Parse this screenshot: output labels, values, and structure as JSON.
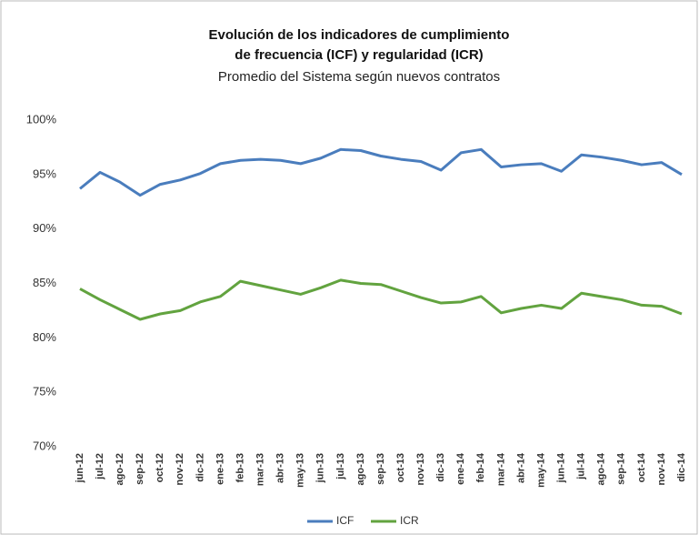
{
  "chart_data": {
    "type": "line",
    "title": [
      "Evolución de los indicadores de cumplimiento",
      "de frecuencia (ICF) y regularidad (ICR)"
    ],
    "subtitle": "Promedio del Sistema según nuevos contratos",
    "categories": [
      "jun-12",
      "jul-12",
      "ago-12",
      "sep-12",
      "oct-12",
      "nov-12",
      "dic-12",
      "ene-13",
      "feb-13",
      "mar-13",
      "abr-13",
      "may-13",
      "jun-13",
      "jul-13",
      "ago-13",
      "sep-13",
      "oct-13",
      "nov-13",
      "dic-13",
      "ene-14",
      "feb-14",
      "mar-14",
      "abr-14",
      "may-14",
      "jun-14",
      "jul-14",
      "ago-14",
      "sep-14",
      "oct-14",
      "nov-14",
      "dic-14"
    ],
    "series": [
      {
        "name": "ICF",
        "color": "#4a7dbd",
        "values": [
          93.7,
          95.2,
          94.3,
          93.1,
          94.1,
          94.5,
          95.1,
          96.0,
          96.3,
          96.4,
          96.3,
          96.0,
          96.5,
          97.3,
          97.2,
          96.7,
          96.4,
          96.2,
          95.4,
          97.0,
          97.3,
          95.7,
          95.9,
          96.0,
          95.3,
          96.8,
          96.6,
          96.3,
          95.9,
          96.1,
          95.0
        ]
      },
      {
        "name": "ICR",
        "color": "#62a33f",
        "values": [
          84.5,
          83.5,
          82.6,
          81.7,
          82.2,
          82.5,
          83.3,
          83.8,
          85.2,
          84.8,
          84.4,
          84.0,
          84.6,
          85.3,
          85.0,
          84.9,
          84.3,
          83.7,
          83.2,
          83.3,
          83.8,
          82.3,
          82.7,
          83.0,
          82.7,
          84.1,
          83.8,
          83.5,
          83.0,
          82.9,
          82.2
        ]
      }
    ],
    "ylim": [
      70,
      100
    ],
    "yticks": [
      {
        "value": 70,
        "label": "70%"
      },
      {
        "value": 75,
        "label": "75%"
      },
      {
        "value": 80,
        "label": "80%"
      },
      {
        "value": 85,
        "label": "85%"
      },
      {
        "value": 90,
        "label": "90%"
      },
      {
        "value": 95,
        "label": "95%"
      },
      {
        "value": 100,
        "label": "100%"
      }
    ],
    "grid": false,
    "legend": "bottom"
  }
}
